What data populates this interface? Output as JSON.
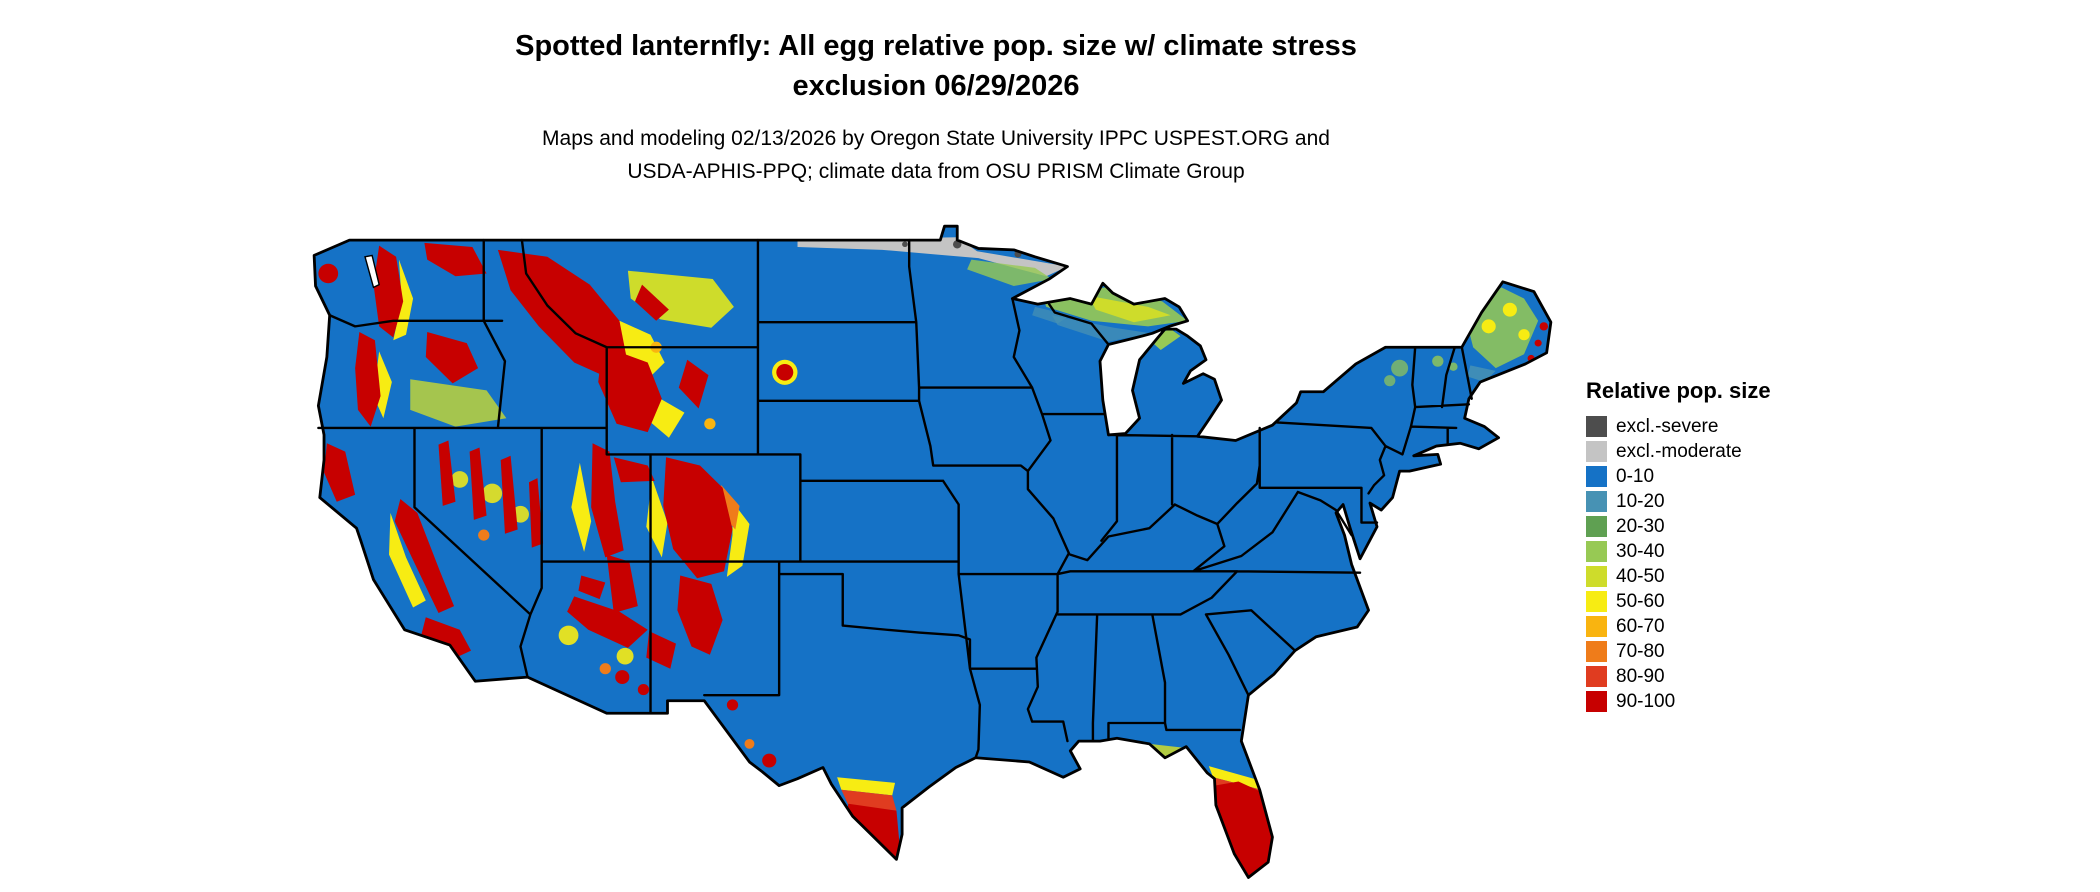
{
  "title": {
    "line1": "Spotted lanternfly: All egg relative pop. size w/ climate stress",
    "line2": "exclusion 06/29/2026"
  },
  "subtitle": {
    "line1": "Maps and modeling 02/13/2026 by Oregon State University IPPC USPEST.ORG and",
    "line2": "USDA-APHIS-PPQ; climate data from OSU PRISM Climate Group"
  },
  "map": {
    "region": "Contiguous United States",
    "base_fill_color": "#1572C6",
    "boundary_color": "#000000"
  },
  "legend": {
    "title": "Relative pop. size",
    "items": [
      {
        "label": "excl.-severe",
        "color": "#4D4D4D"
      },
      {
        "label": "excl.-moderate",
        "color": "#C4C4C4"
      },
      {
        "label": "0-10",
        "color": "#1572C6"
      },
      {
        "label": "10-20",
        "color": "#4792B4"
      },
      {
        "label": "20-30",
        "color": "#5FA052"
      },
      {
        "label": "30-40",
        "color": "#97C954"
      },
      {
        "label": "40-50",
        "color": "#CEDC2B"
      },
      {
        "label": "50-60",
        "color": "#F7EC13"
      },
      {
        "label": "60-70",
        "color": "#F9B410"
      },
      {
        "label": "70-80",
        "color": "#EF7C1A"
      },
      {
        "label": "80-90",
        "color": "#E03C20"
      },
      {
        "label": "90-100",
        "color": "#C70000"
      }
    ]
  }
}
